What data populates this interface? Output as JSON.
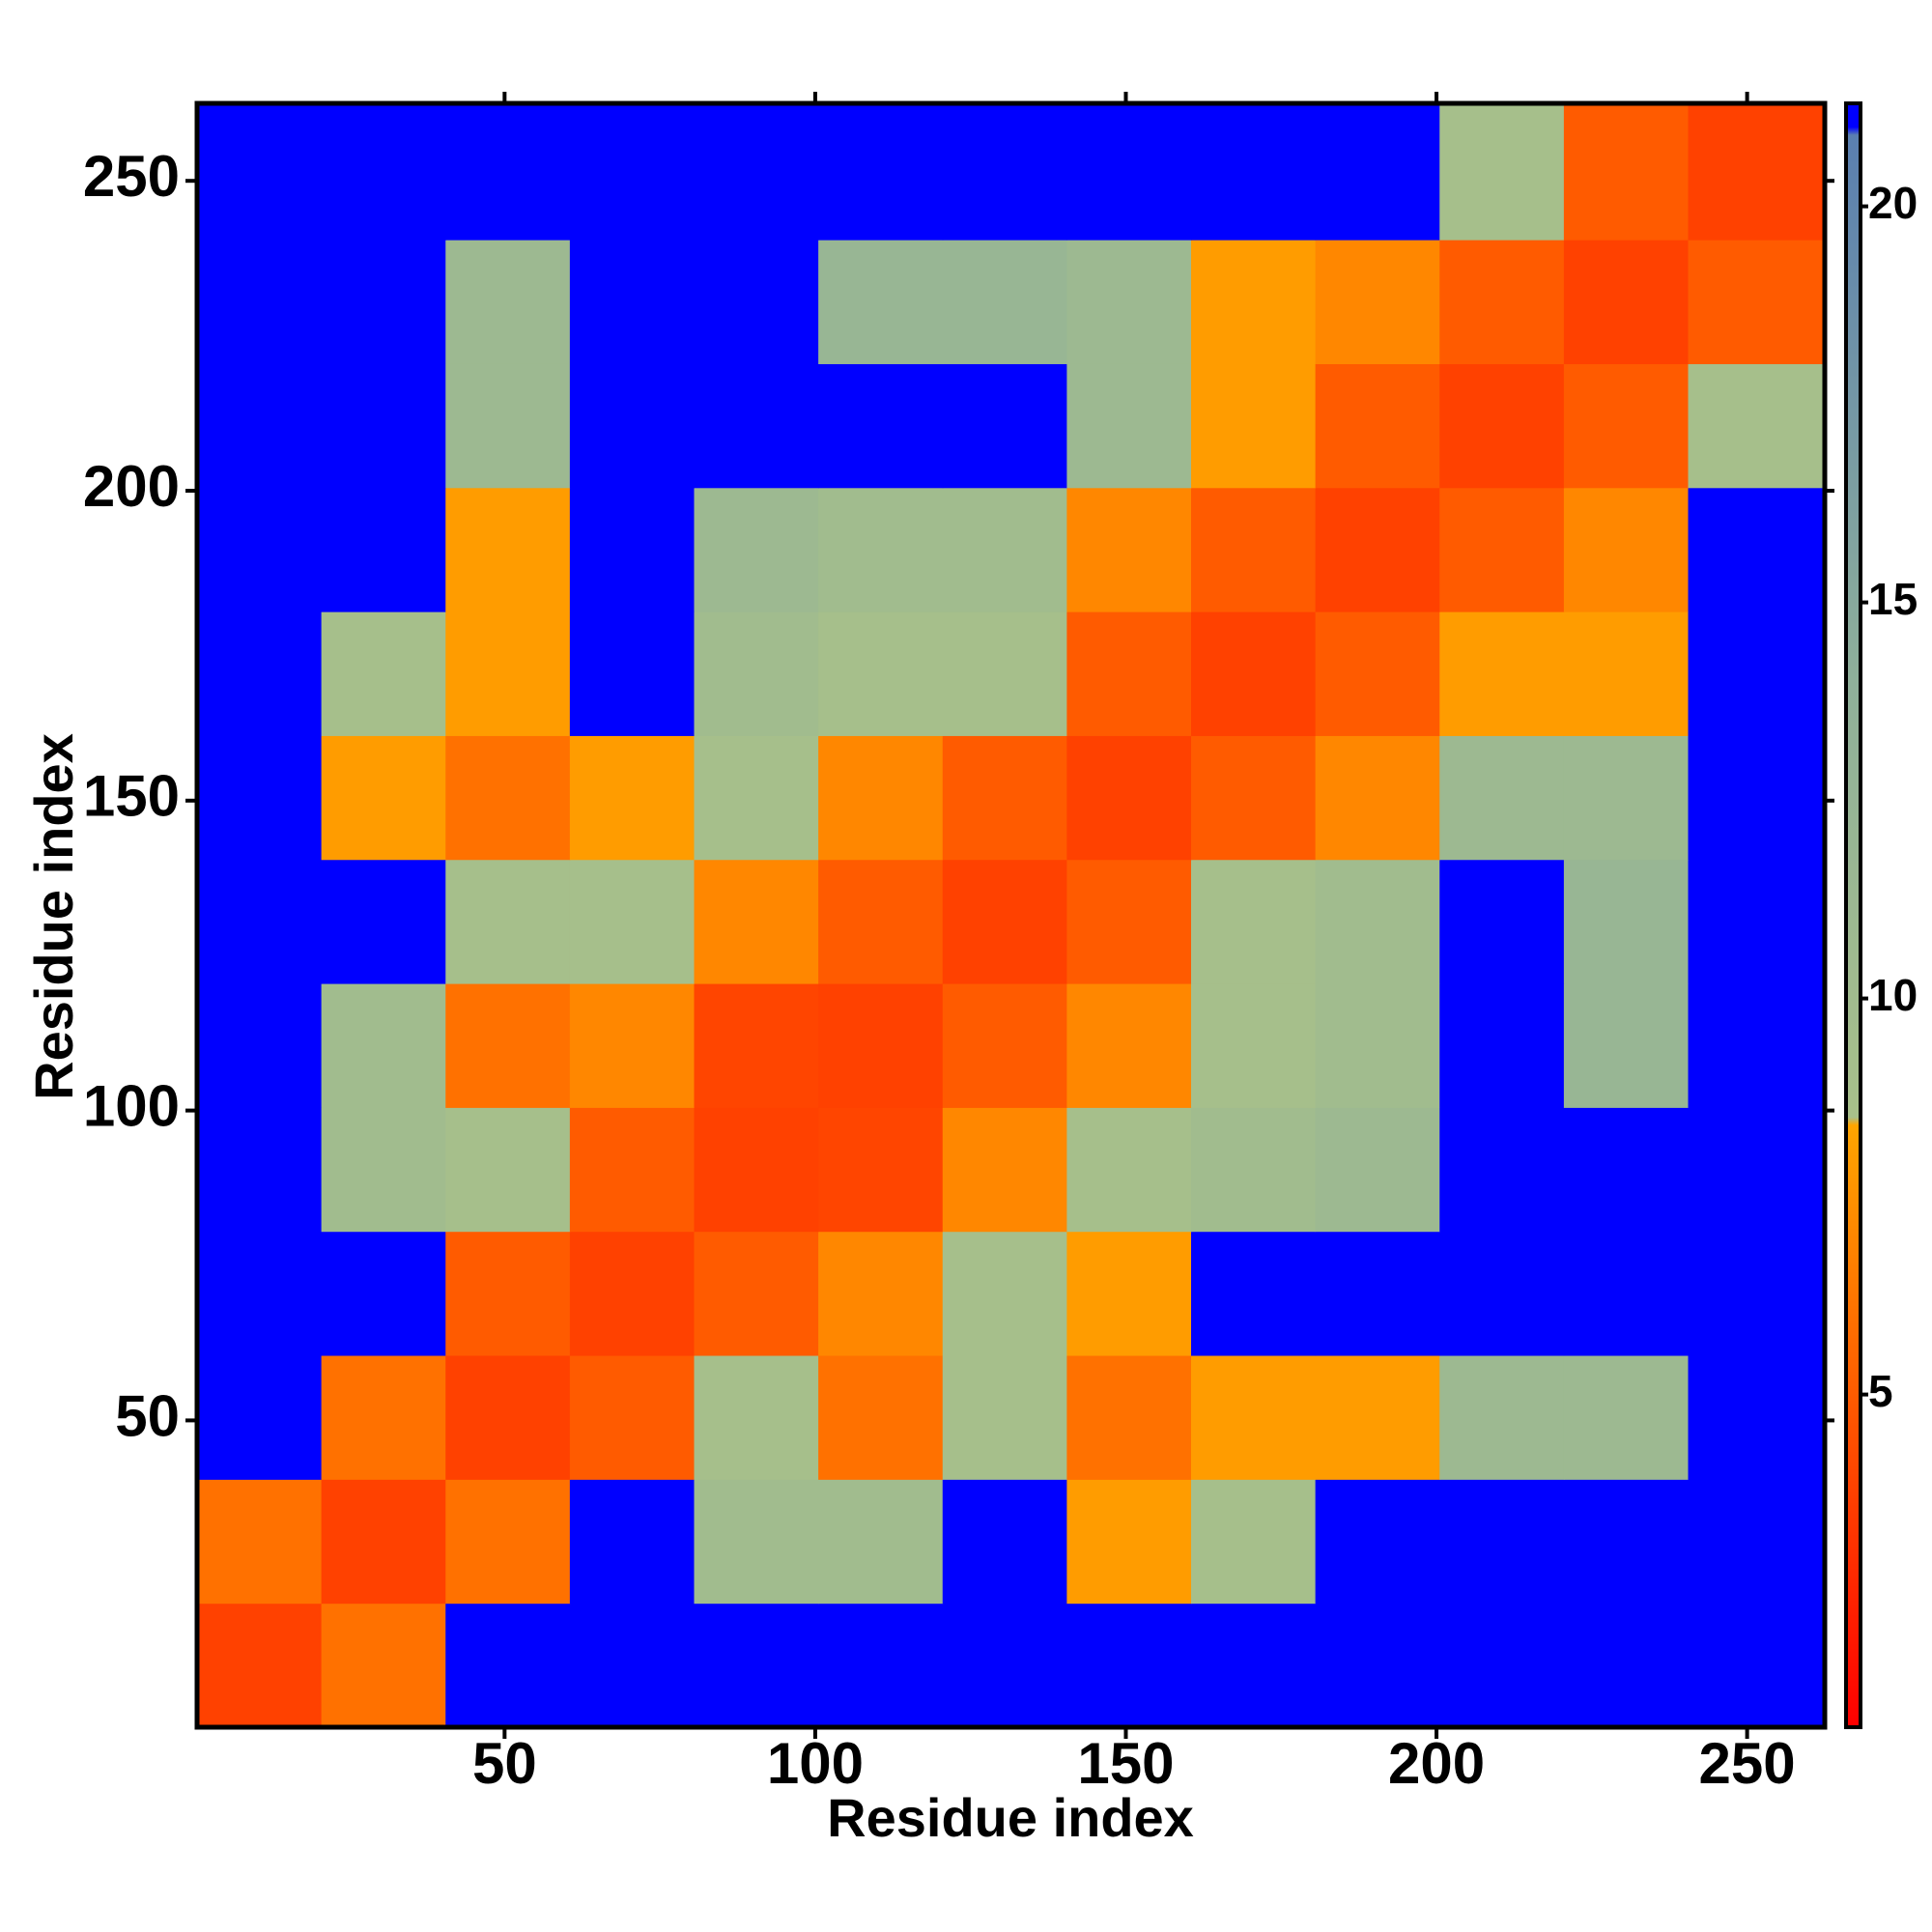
{
  "chart_data": {
    "type": "heatmap",
    "xlabel": "Residue index",
    "ylabel": "Residue index",
    "x_bins": [
      0.5,
      20.5,
      40.5,
      60.5,
      80.5,
      100.5,
      120.5,
      140.5,
      160.5,
      180.5,
      200.5,
      220.5,
      240.5,
      262.5
    ],
    "y_bins": [
      0.5,
      20.5,
      40.5,
      60.5,
      80.5,
      100.5,
      120.5,
      140.5,
      160.5,
      180.5,
      200.5,
      220.5,
      240.5,
      262.5
    ],
    "values": [
      [
        3.8,
        6,
        22,
        22,
        22,
        22,
        22,
        22,
        22,
        22,
        22,
        22,
        22
      ],
      [
        6,
        3.8,
        6,
        22,
        10,
        10,
        22,
        8,
        9,
        22,
        22,
        22,
        22
      ],
      [
        22,
        6,
        3.8,
        5,
        9,
        6,
        9,
        6,
        8,
        8,
        11,
        11,
        22
      ],
      [
        22,
        22,
        5,
        3.8,
        5,
        7,
        9,
        8,
        22,
        22,
        22,
        22,
        22
      ],
      [
        22,
        10,
        9,
        5,
        3.8,
        4,
        7,
        9,
        10,
        11,
        22,
        22,
        22
      ],
      [
        22,
        10,
        6,
        7,
        4,
        3.8,
        5,
        7,
        9,
        10,
        22,
        12,
        22
      ],
      [
        22,
        22,
        9,
        9,
        7,
        5,
        3.8,
        5,
        9,
        10,
        22,
        12,
        22
      ],
      [
        22,
        8,
        6,
        8,
        9,
        7,
        5,
        3.8,
        5,
        7,
        11,
        11,
        22
      ],
      [
        22,
        9,
        8,
        22,
        10,
        9,
        9,
        5,
        3.8,
        5,
        8,
        8,
        22
      ],
      [
        22,
        22,
        8,
        22,
        11,
        10,
        10,
        7,
        5,
        3.8,
        5,
        7,
        22
      ],
      [
        22,
        22,
        11,
        22,
        22,
        22,
        22,
        11,
        8,
        5,
        3.8,
        5,
        9
      ],
      [
        22,
        22,
        11,
        22,
        22,
        12,
        12,
        11,
        8,
        7,
        5,
        3.8,
        5
      ],
      [
        22,
        22,
        22,
        22,
        22,
        22,
        22,
        22,
        22,
        22,
        9,
        5,
        3.8
      ]
    ],
    "xlim": [
      0.5,
      262.5
    ],
    "ylim": [
      0.5,
      262.5
    ],
    "xticks": [
      50,
      100,
      150,
      200,
      250
    ],
    "yticks": [
      50,
      100,
      150,
      200,
      250
    ],
    "zlim": [
      0.8,
      21.3
    ],
    "zticks": [
      5,
      10,
      15,
      20
    ],
    "colorscale": [
      [
        0.8,
        "#ff0000"
      ],
      [
        8.4,
        "#ffa500"
      ],
      [
        8.5,
        "#a8c08a"
      ],
      [
        14,
        "#8fb09a"
      ],
      [
        20.9,
        "#5a7fb0"
      ],
      [
        21,
        "#0000ff"
      ]
    ]
  }
}
